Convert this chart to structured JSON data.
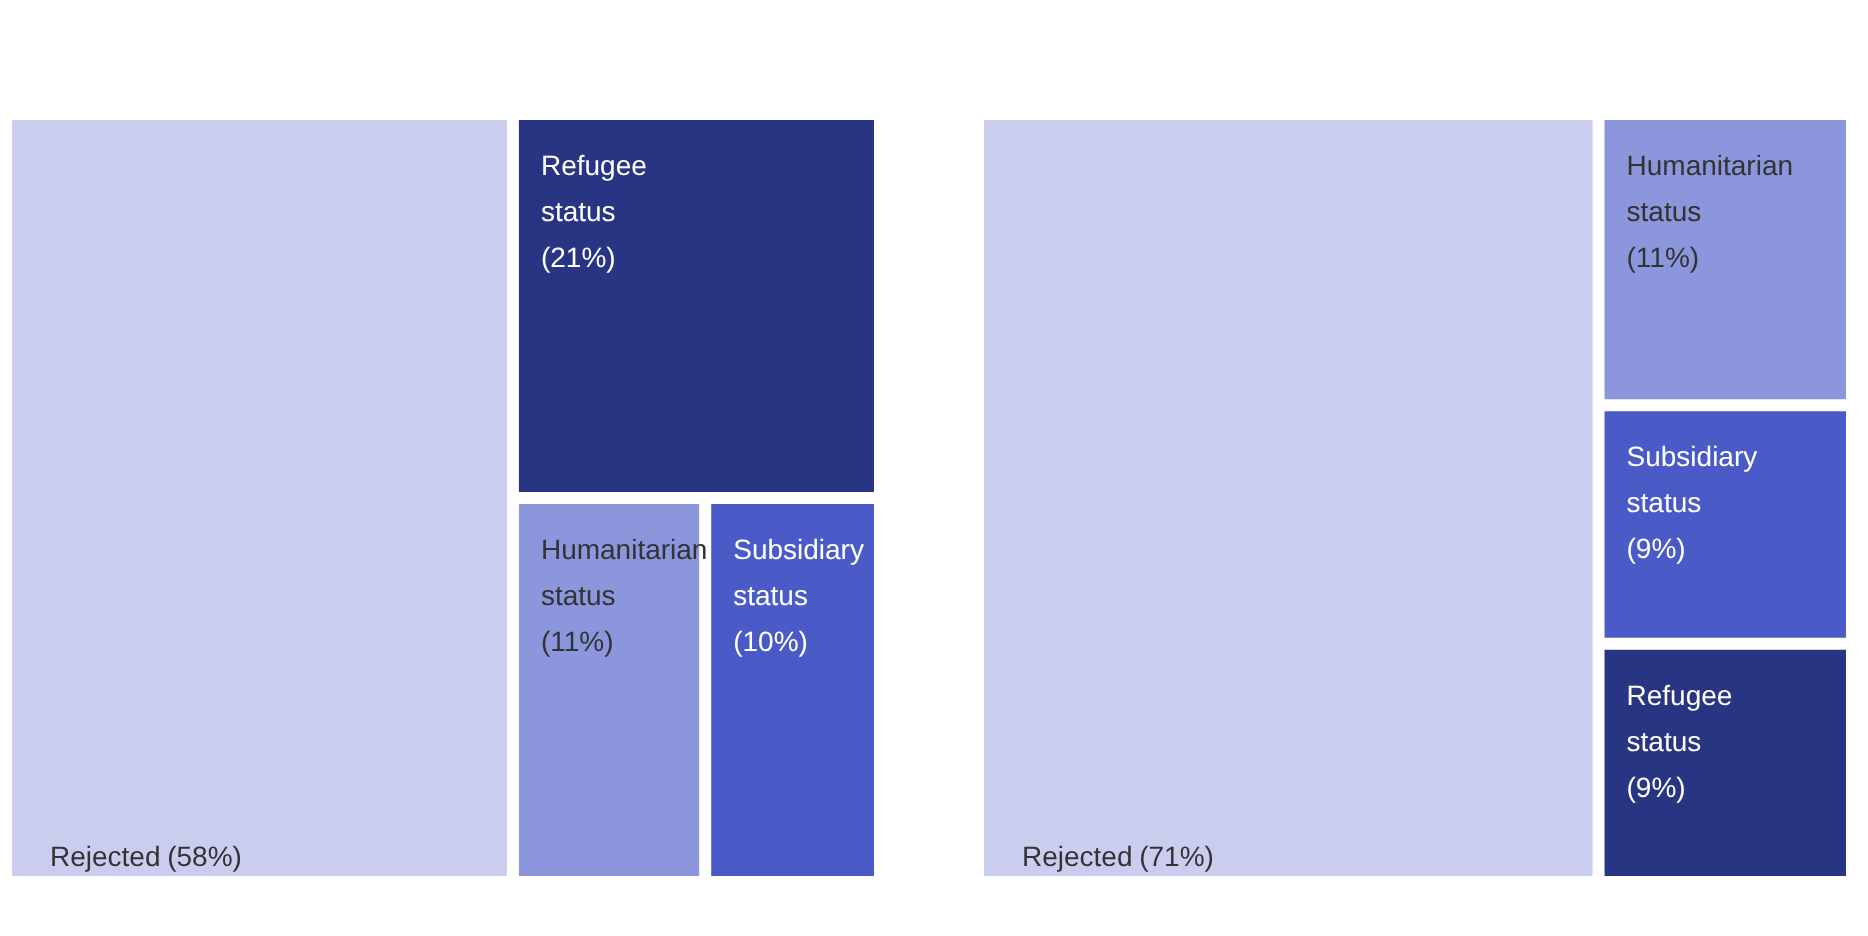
{
  "chart_data": [
    {
      "type": "other",
      "categories": [
        "Rejected",
        "Refugee status",
        "Humanitarian status",
        "Subsidiary status"
      ],
      "values": [
        58,
        21,
        11,
        10
      ],
      "value_labels": [
        "(58%)",
        "(21%)",
        "(11%)",
        "(10%)"
      ],
      "colors": [
        "#cbcdee",
        "#283583",
        "#8b96dc",
        "#4a5bc8"
      ]
    },
    {
      "type": "other",
      "categories": [
        "Rejected",
        "Humanitarian status",
        "Subsidiary status",
        "Refugee status"
      ],
      "values": [
        71,
        11,
        9,
        9
      ],
      "value_labels": [
        "(71%)",
        "(11%)",
        "(9%)",
        "(9%)"
      ],
      "colors": [
        "#cbcdee",
        "#8b96dc",
        "#4a5bc8",
        "#283583"
      ]
    }
  ]
}
